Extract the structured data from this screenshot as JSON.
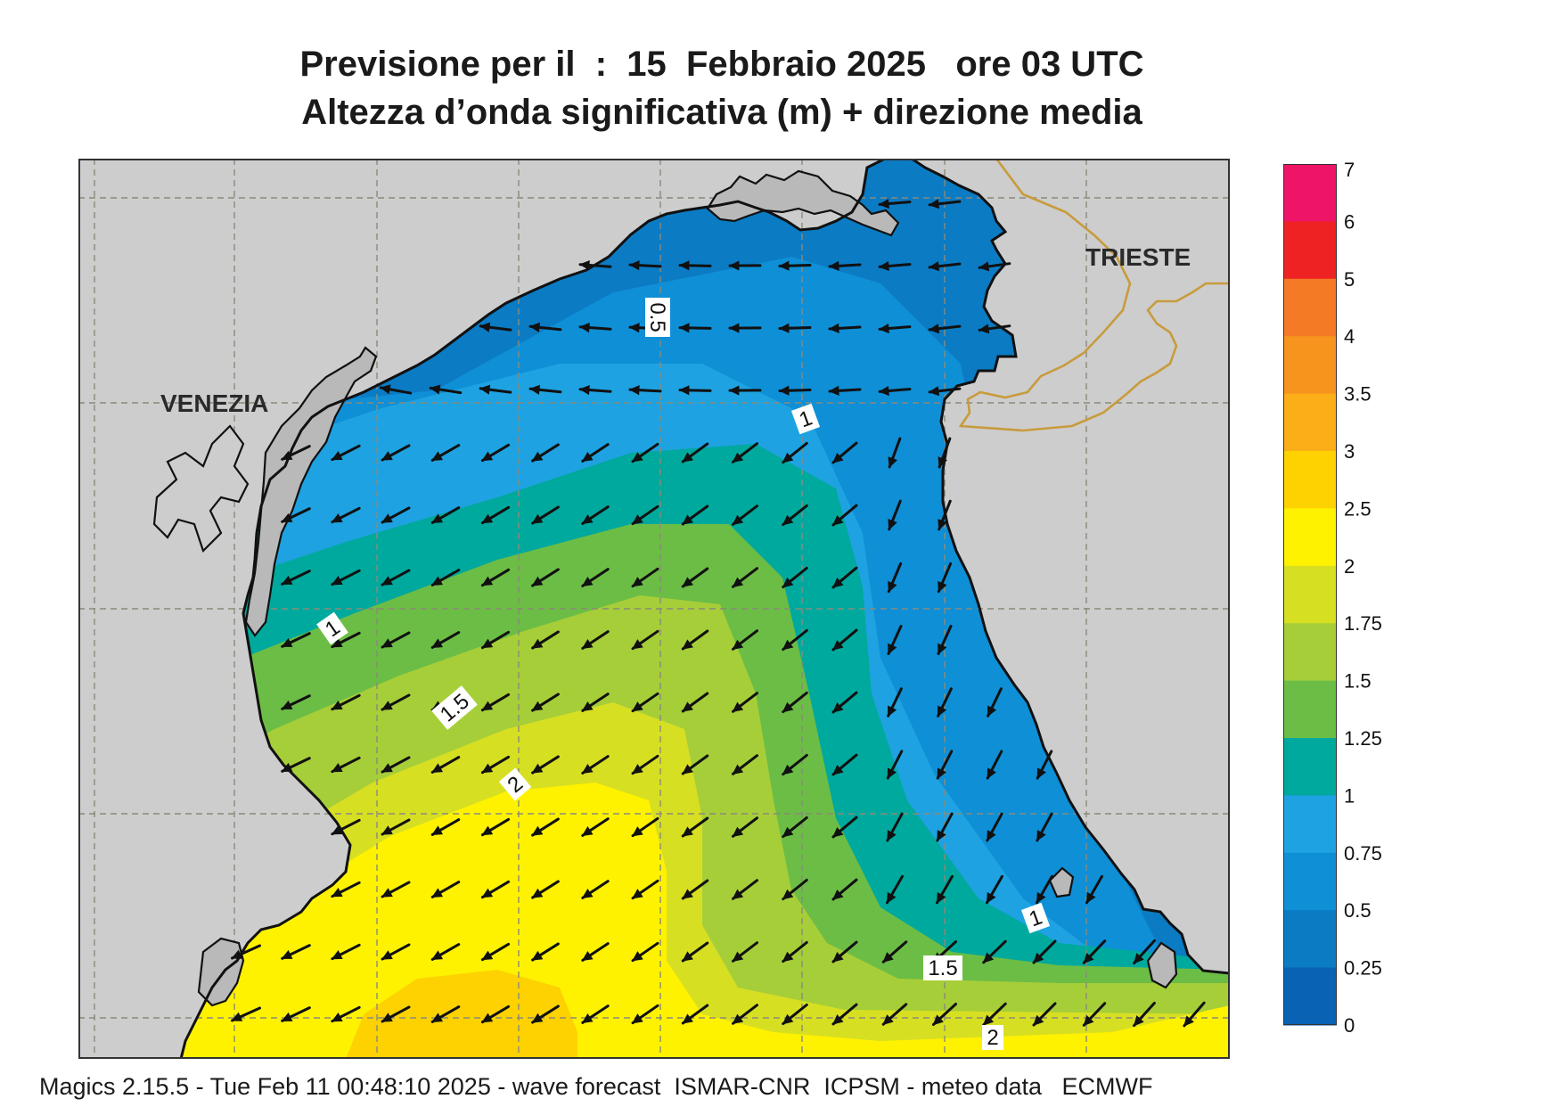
{
  "title": {
    "line1": "Previsione per il  :  15  Febbraio 2025   ore 03 UTC",
    "line2": "Altezza d’onda significativa (m) + direzione media"
  },
  "map": {
    "region": "Northern Adriatic Sea",
    "cities": [
      {
        "name": "VENEZIA"
      },
      {
        "name": "TRIESTE"
      }
    ],
    "contour_labels": [
      "0.5",
      "1",
      "1",
      "1.5",
      "2",
      "1",
      "1.5",
      "2"
    ],
    "land_color": "#cdcdcd",
    "coast_color": "#111111",
    "border_color": "#c89b3c",
    "grid_color": "#8a8a7a",
    "arrow_color": "#111111",
    "arrow_direction": "south-west"
  },
  "colorbar": {
    "tick_labels": [
      "7",
      "6",
      "5",
      "4",
      "3.5",
      "3",
      "2.5",
      "2",
      "1.75",
      "1.5",
      "1.25",
      "1",
      "0.75",
      "0.5",
      "0.25",
      "0"
    ],
    "bands": [
      {
        "from": 6,
        "to": 7,
        "color": "#ee1466"
      },
      {
        "from": 5,
        "to": 6,
        "color": "#ee2222"
      },
      {
        "from": 4,
        "to": 5,
        "color": "#f47a26"
      },
      {
        "from": 3.5,
        "to": 4,
        "color": "#f7941d"
      },
      {
        "from": 3,
        "to": 3.5,
        "color": "#fbae17"
      },
      {
        "from": 2.5,
        "to": 3,
        "color": "#fdd200"
      },
      {
        "from": 2,
        "to": 2.5,
        "color": "#fff200"
      },
      {
        "from": 1.75,
        "to": 2,
        "color": "#d7df23"
      },
      {
        "from": 1.5,
        "to": 1.75,
        "color": "#a6ce39"
      },
      {
        "from": 1.25,
        "to": 1.5,
        "color": "#6cbd45"
      },
      {
        "from": 1,
        "to": 1.25,
        "color": "#00a99d"
      },
      {
        "from": 0.75,
        "to": 1,
        "color": "#1fa2e1"
      },
      {
        "from": 0.5,
        "to": 0.75,
        "color": "#0f8fd6"
      },
      {
        "from": 0.25,
        "to": 0.5,
        "color": "#0b7bc4"
      },
      {
        "from": 0,
        "to": 0.25,
        "color": "#0962b4"
      }
    ]
  },
  "footer": "Magics 2.15.5 - Tue Feb 11 00:48:10 2025 - wave forecast  ISMAR-CNR  ICPSM - meteo data   ECMWF"
}
